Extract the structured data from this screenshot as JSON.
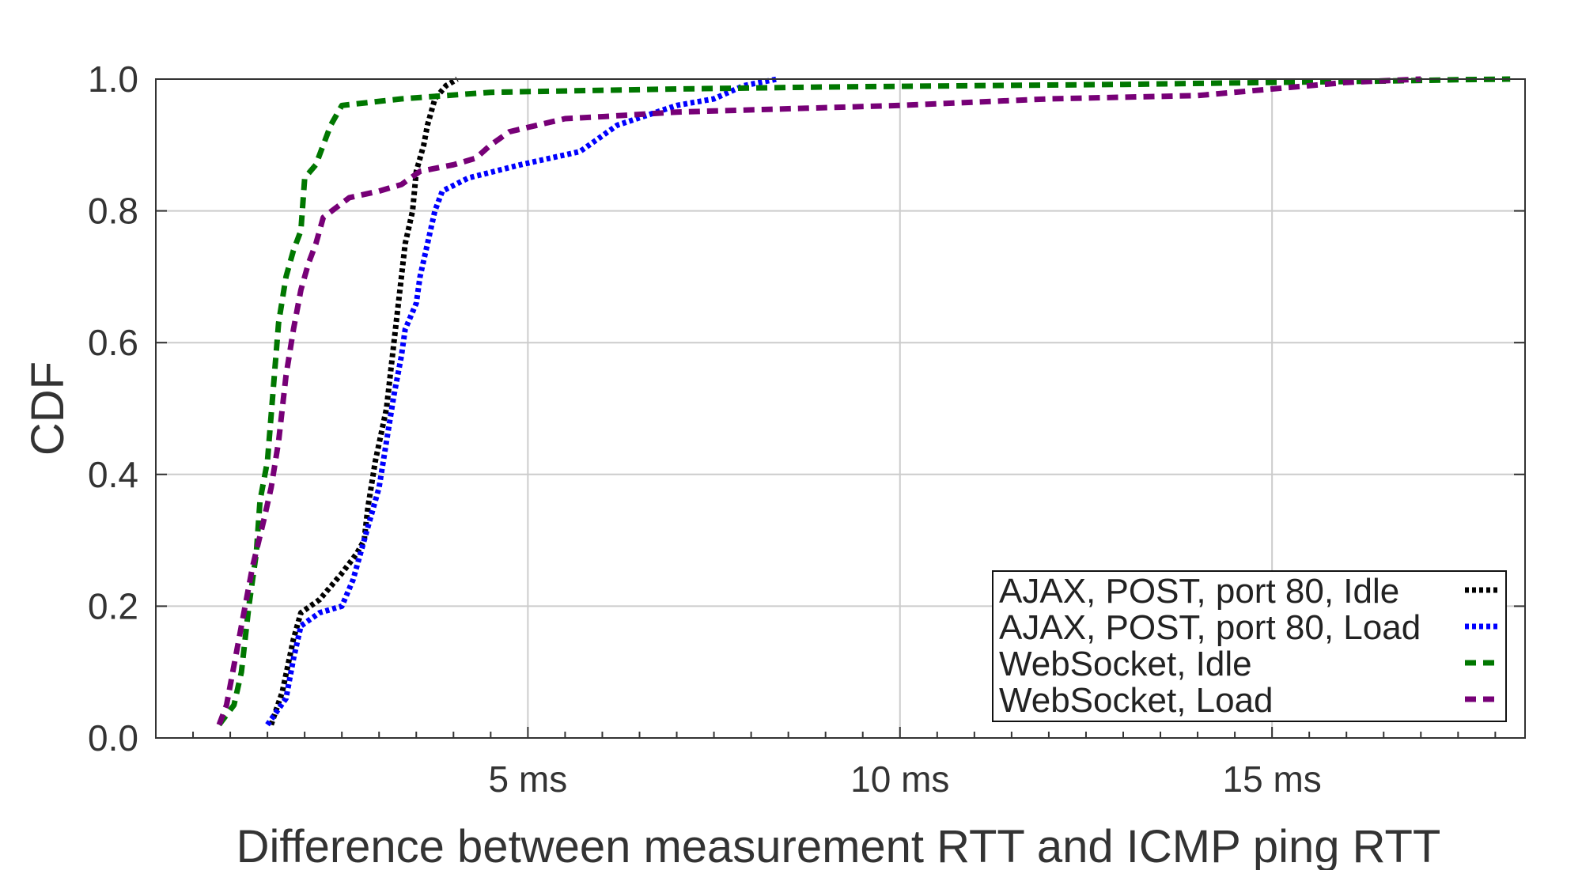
{
  "chart_data": {
    "type": "line",
    "title": "",
    "xlabel": "Difference between measurement RTT and ICMP ping RTT",
    "ylabel": "CDF",
    "xlim": [
      0,
      18.4
    ],
    "ylim": [
      0,
      1
    ],
    "grid": true,
    "legend_position": "bottom-right",
    "x_ticks": [
      {
        "value": 5,
        "label": "5 ms"
      },
      {
        "value": 10,
        "label": "10 ms"
      },
      {
        "value": 15,
        "label": "15 ms"
      }
    ],
    "x_minor_ticks": [
      0.5,
      1,
      1.5,
      2,
      2.5,
      3,
      3.5,
      4,
      4.5,
      5.5,
      6,
      6.5,
      7,
      7.5,
      8,
      8.5,
      9,
      9.5,
      10.5,
      11,
      11.5,
      12,
      12.5,
      13,
      13.5,
      14,
      14.5,
      15.5,
      16,
      16.5,
      17,
      17.5,
      18
    ],
    "y_ticks": [
      {
        "value": 0.0,
        "label": "0.0"
      },
      {
        "value": 0.2,
        "label": "0.2"
      },
      {
        "value": 0.4,
        "label": "0.4"
      },
      {
        "value": 0.6,
        "label": "0.6"
      },
      {
        "value": 0.8,
        "label": "0.8"
      },
      {
        "value": 1.0,
        "label": "1.0"
      }
    ],
    "series": [
      {
        "name": "AJAX, POST, port 80, Idle",
        "color": "#000000",
        "dash": "dotted",
        "points": [
          [
            1.55,
            0.02
          ],
          [
            1.7,
            0.07
          ],
          [
            1.85,
            0.15
          ],
          [
            1.95,
            0.19
          ],
          [
            2.2,
            0.21
          ],
          [
            2.5,
            0.25
          ],
          [
            2.7,
            0.28
          ],
          [
            2.8,
            0.3
          ],
          [
            2.85,
            0.35
          ],
          [
            2.95,
            0.42
          ],
          [
            3.1,
            0.5
          ],
          [
            3.2,
            0.6
          ],
          [
            3.3,
            0.7
          ],
          [
            3.35,
            0.75
          ],
          [
            3.45,
            0.8
          ],
          [
            3.5,
            0.86
          ],
          [
            3.6,
            0.9
          ],
          [
            3.65,
            0.93
          ],
          [
            3.75,
            0.97
          ],
          [
            3.9,
            0.99
          ],
          [
            4.05,
            1.0
          ]
        ]
      },
      {
        "name": "AJAX, POST, port 80, Load",
        "color": "#0000ff",
        "dash": "dotted",
        "points": [
          [
            1.5,
            0.02
          ],
          [
            1.75,
            0.06
          ],
          [
            1.85,
            0.12
          ],
          [
            1.95,
            0.17
          ],
          [
            2.2,
            0.19
          ],
          [
            2.5,
            0.2
          ],
          [
            2.65,
            0.24
          ],
          [
            2.75,
            0.28
          ],
          [
            2.85,
            0.32
          ],
          [
            3.0,
            0.38
          ],
          [
            3.1,
            0.45
          ],
          [
            3.2,
            0.52
          ],
          [
            3.3,
            0.58
          ],
          [
            3.35,
            0.62
          ],
          [
            3.5,
            0.66
          ],
          [
            3.55,
            0.7
          ],
          [
            3.65,
            0.75
          ],
          [
            3.75,
            0.8
          ],
          [
            3.85,
            0.83
          ],
          [
            4.2,
            0.85
          ],
          [
            4.9,
            0.87
          ],
          [
            5.7,
            0.89
          ],
          [
            5.95,
            0.91
          ],
          [
            6.2,
            0.93
          ],
          [
            7.0,
            0.96
          ],
          [
            7.5,
            0.97
          ],
          [
            7.9,
            0.99
          ],
          [
            8.35,
            1.0
          ]
        ]
      },
      {
        "name": "WebSocket, Idle",
        "color": "#007700",
        "dash": "dashed",
        "points": [
          [
            0.85,
            0.02
          ],
          [
            1.05,
            0.05
          ],
          [
            1.15,
            0.1
          ],
          [
            1.25,
            0.2
          ],
          [
            1.35,
            0.28
          ],
          [
            1.4,
            0.36
          ],
          [
            1.5,
            0.42
          ],
          [
            1.55,
            0.49
          ],
          [
            1.6,
            0.56
          ],
          [
            1.65,
            0.63
          ],
          [
            1.75,
            0.7
          ],
          [
            1.85,
            0.74
          ],
          [
            1.95,
            0.77
          ],
          [
            2.0,
            0.85
          ],
          [
            2.15,
            0.87
          ],
          [
            2.35,
            0.93
          ],
          [
            2.5,
            0.96
          ],
          [
            3.3,
            0.97
          ],
          [
            3.9,
            0.975
          ],
          [
            4.5,
            0.98
          ],
          [
            7.0,
            0.985
          ],
          [
            9.0,
            0.988
          ],
          [
            11.0,
            0.99
          ],
          [
            13.0,
            0.992
          ],
          [
            15.0,
            0.995
          ],
          [
            16.5,
            0.997
          ],
          [
            17.5,
            0.999
          ],
          [
            18.2,
            1.0
          ]
        ]
      },
      {
        "name": "WebSocket, Load",
        "color": "#770077",
        "dash": "dashed",
        "points": [
          [
            0.85,
            0.02
          ],
          [
            0.95,
            0.05
          ],
          [
            1.05,
            0.11
          ],
          [
            1.15,
            0.17
          ],
          [
            1.3,
            0.26
          ],
          [
            1.45,
            0.33
          ],
          [
            1.55,
            0.38
          ],
          [
            1.65,
            0.45
          ],
          [
            1.75,
            0.55
          ],
          [
            1.85,
            0.62
          ],
          [
            1.95,
            0.68
          ],
          [
            2.05,
            0.72
          ],
          [
            2.15,
            0.75
          ],
          [
            2.25,
            0.79
          ],
          [
            2.6,
            0.82
          ],
          [
            3.0,
            0.83
          ],
          [
            3.3,
            0.84
          ],
          [
            3.55,
            0.86
          ],
          [
            4.0,
            0.87
          ],
          [
            4.3,
            0.88
          ],
          [
            4.5,
            0.9
          ],
          [
            4.75,
            0.92
          ],
          [
            5.5,
            0.94
          ],
          [
            6.0,
            0.943
          ],
          [
            7.0,
            0.95
          ],
          [
            10.0,
            0.96
          ],
          [
            12.0,
            0.97
          ],
          [
            14.0,
            0.975
          ],
          [
            15.0,
            0.985
          ],
          [
            16.0,
            0.995
          ],
          [
            17.0,
            1.0
          ]
        ]
      }
    ]
  }
}
